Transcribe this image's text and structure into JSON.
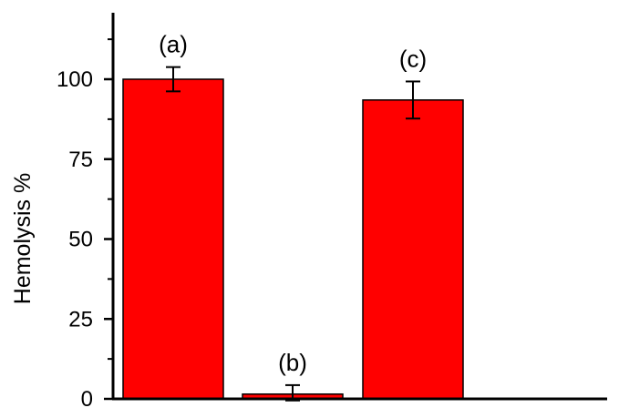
{
  "chart_data": {
    "type": "bar",
    "categories": [
      "(a)",
      "(b)",
      "(c)"
    ],
    "values": [
      100,
      1.5,
      93.5
    ],
    "errors": [
      3.8,
      2.8,
      5.8
    ],
    "bar_labels": [
      "(a)",
      "(b)",
      "(c)"
    ],
    "title": "",
    "xlabel": "",
    "ylabel": "Hemolysis %",
    "ylim": [
      0,
      120
    ],
    "yticks": [
      0,
      25,
      50,
      75,
      100
    ],
    "ytick_labels": [
      "0",
      "25",
      "50",
      "75",
      "100"
    ],
    "grid": false,
    "colors": {
      "bar": "#ff0000",
      "bar_outline": "#000000",
      "axis": "#000000"
    }
  }
}
